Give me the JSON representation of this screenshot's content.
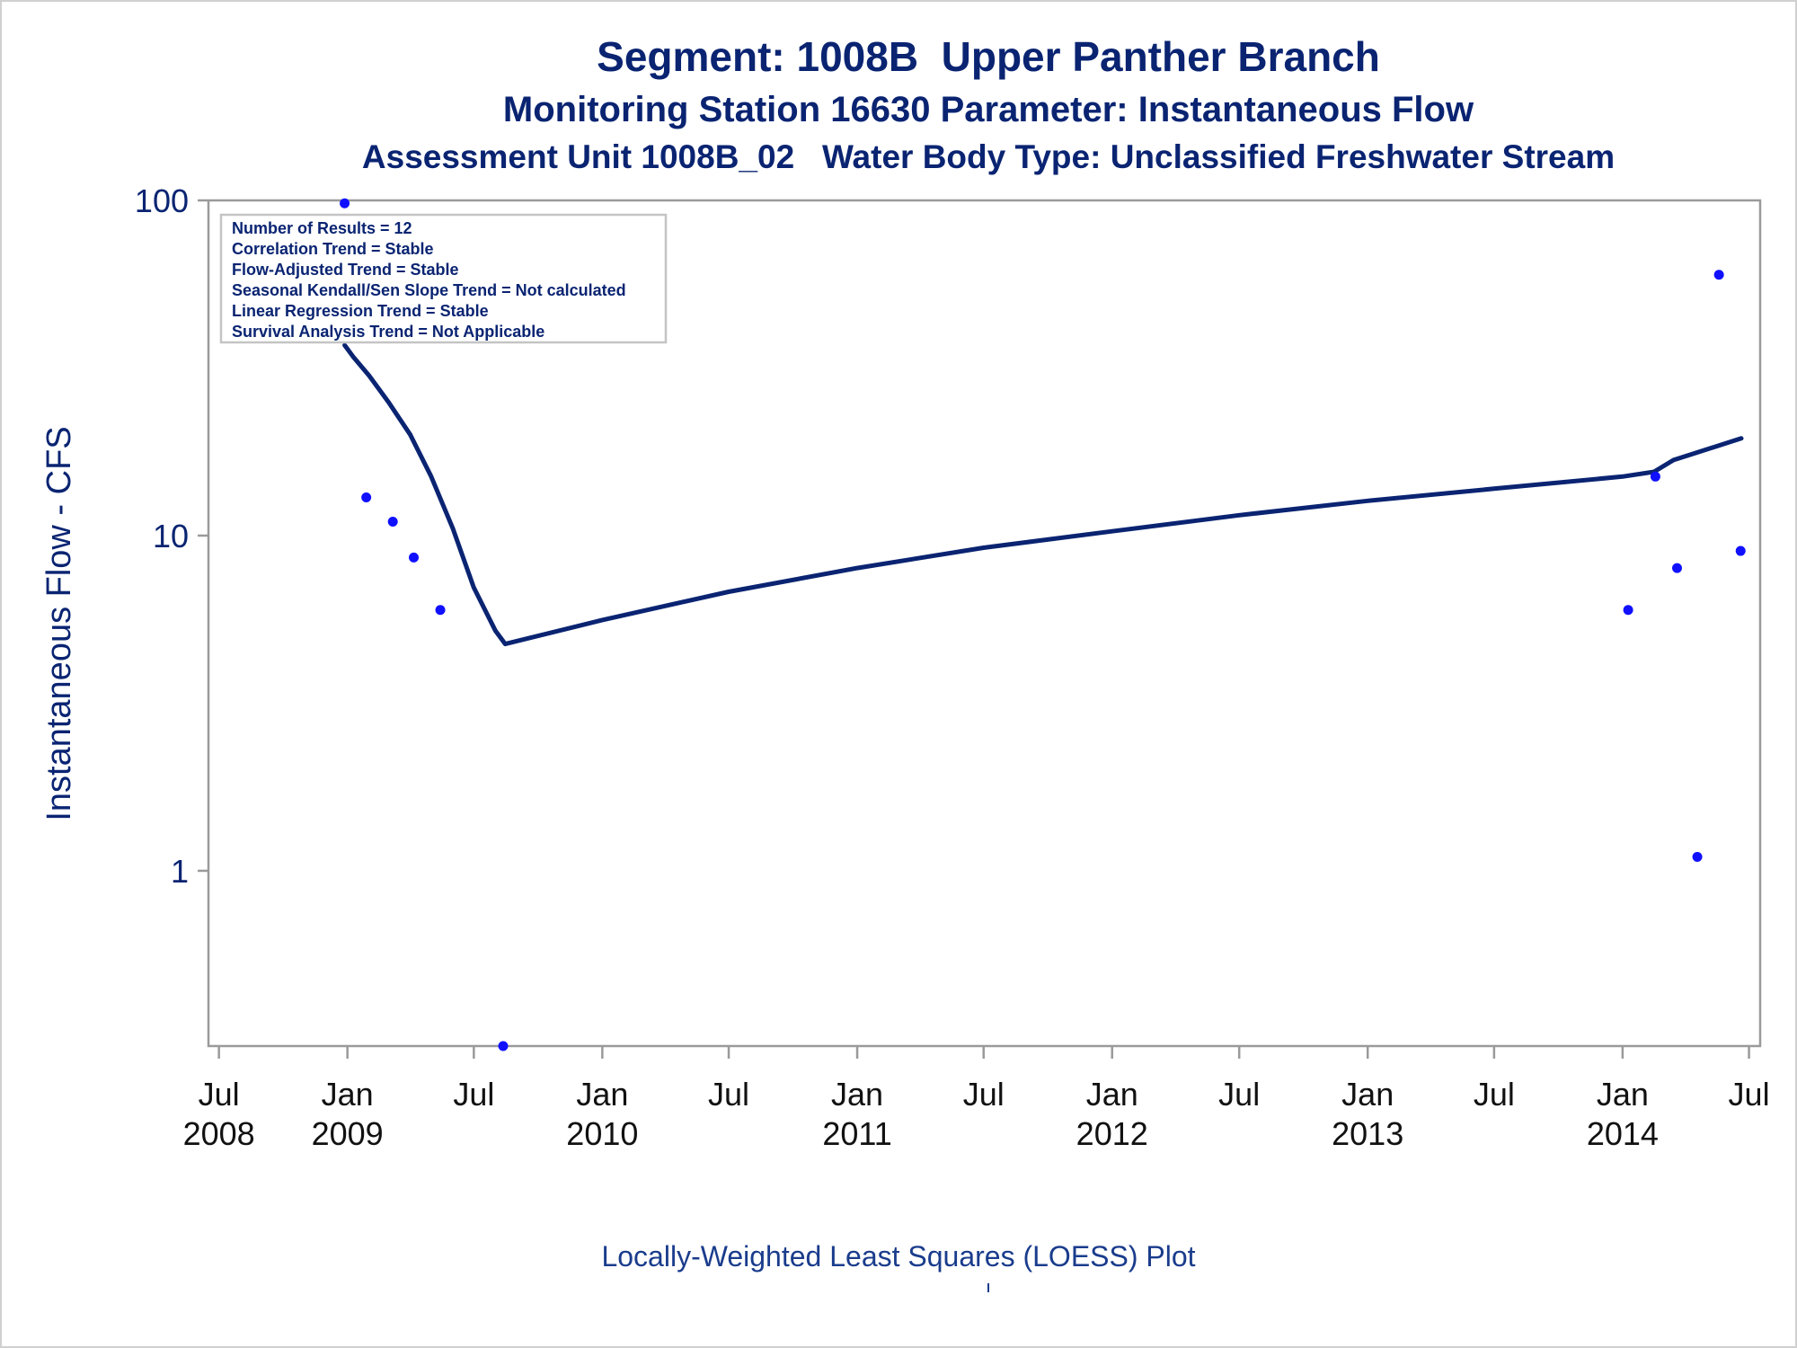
{
  "titles": {
    "line1": "Segment: 1008B  Upper Panther Branch",
    "line2": "Monitoring Station 16630 Parameter: Instantaneous Flow",
    "line3": "Assessment Unit 1008B_02   Water Body Type: Unclassified Freshwater Stream"
  },
  "legend_lines": [
    "Number of Results = 12",
    "Correlation Trend = Stable",
    "Flow-Adjusted Trend = Stable",
    "Seasonal Kendall/Sen Slope Trend = Not calculated",
    "Linear Regression Trend = Stable",
    "Survival Analysis Trend = Not Applicable"
  ],
  "footnote": "Locally-Weighted Least Squares (LOESS) Plot",
  "colors": {
    "title": "#0a2472",
    "axis_text": "#0a2472",
    "line": "#0a2472",
    "points": "#1010ff",
    "frame": "#9a9a9a"
  },
  "chart_data": {
    "type": "scatter",
    "ylabel": "Instantaneous Flow - CFS",
    "y_scale": "log",
    "ylim": [
      0.3,
      100
    ],
    "y_ticks": [
      {
        "value": 1,
        "label": "1"
      },
      {
        "value": 10,
        "label": "10"
      },
      {
        "value": 100,
        "label": "100"
      }
    ],
    "xlim": [
      "2008-06-16",
      "2014-07-17"
    ],
    "x_ticks": [
      {
        "date": "2008-07-01",
        "label1": "Jul",
        "label2": "2008"
      },
      {
        "date": "2009-01-01",
        "label1": "Jan",
        "label2": "2009"
      },
      {
        "date": "2009-07-01",
        "label1": "Jul",
        "label2": ""
      },
      {
        "date": "2010-01-01",
        "label1": "Jan",
        "label2": "2010"
      },
      {
        "date": "2010-07-01",
        "label1": "Jul",
        "label2": ""
      },
      {
        "date": "2011-01-01",
        "label1": "Jan",
        "label2": "2011"
      },
      {
        "date": "2011-07-01",
        "label1": "Jul",
        "label2": ""
      },
      {
        "date": "2012-01-01",
        "label1": "Jan",
        "label2": "2012"
      },
      {
        "date": "2012-07-01",
        "label1": "Jul",
        "label2": ""
      },
      {
        "date": "2013-01-01",
        "label1": "Jan",
        "label2": "2013"
      },
      {
        "date": "2013-07-01",
        "label1": "Jul",
        "label2": ""
      },
      {
        "date": "2014-01-01",
        "label1": "Jan",
        "label2": "2014"
      },
      {
        "date": "2014-07-01",
        "label1": "Jul",
        "label2": ""
      }
    ],
    "points": [
      {
        "x": "2008-12-28",
        "y": 98
      },
      {
        "x": "2009-01-28",
        "y": 13
      },
      {
        "x": "2009-03-07",
        "y": 11
      },
      {
        "x": "2009-04-06",
        "y": 8.6
      },
      {
        "x": "2009-05-14",
        "y": 6
      },
      {
        "x": "2009-08-12",
        "y": 0.3
      },
      {
        "x": "2014-01-09",
        "y": 6
      },
      {
        "x": "2014-02-17",
        "y": 15
      },
      {
        "x": "2014-03-20",
        "y": 8
      },
      {
        "x": "2014-04-18",
        "y": 1.1
      },
      {
        "x": "2014-05-19",
        "y": 60
      },
      {
        "x": "2014-06-19",
        "y": 9
      }
    ],
    "loess": [
      {
        "x": "2008-12-28",
        "y": 37
      },
      {
        "x": "2009-01-10",
        "y": 34
      },
      {
        "x": "2009-02-01",
        "y": 30
      },
      {
        "x": "2009-03-01",
        "y": 25
      },
      {
        "x": "2009-04-01",
        "y": 20
      },
      {
        "x": "2009-05-01",
        "y": 15
      },
      {
        "x": "2009-06-01",
        "y": 10.5
      },
      {
        "x": "2009-07-01",
        "y": 7
      },
      {
        "x": "2009-08-01",
        "y": 5.2
      },
      {
        "x": "2009-08-15",
        "y": 4.75
      },
      {
        "x": "2010-01-01",
        "y": 5.6
      },
      {
        "x": "2010-07-01",
        "y": 6.8
      },
      {
        "x": "2011-01-01",
        "y": 8
      },
      {
        "x": "2011-07-01",
        "y": 9.2
      },
      {
        "x": "2012-01-01",
        "y": 10.3
      },
      {
        "x": "2012-07-01",
        "y": 11.5
      },
      {
        "x": "2013-01-01",
        "y": 12.7
      },
      {
        "x": "2013-07-01",
        "y": 13.8
      },
      {
        "x": "2014-01-01",
        "y": 15
      },
      {
        "x": "2014-02-15",
        "y": 15.5
      },
      {
        "x": "2014-03-15",
        "y": 16.8
      },
      {
        "x": "2014-06-20",
        "y": 19.5
      }
    ]
  }
}
